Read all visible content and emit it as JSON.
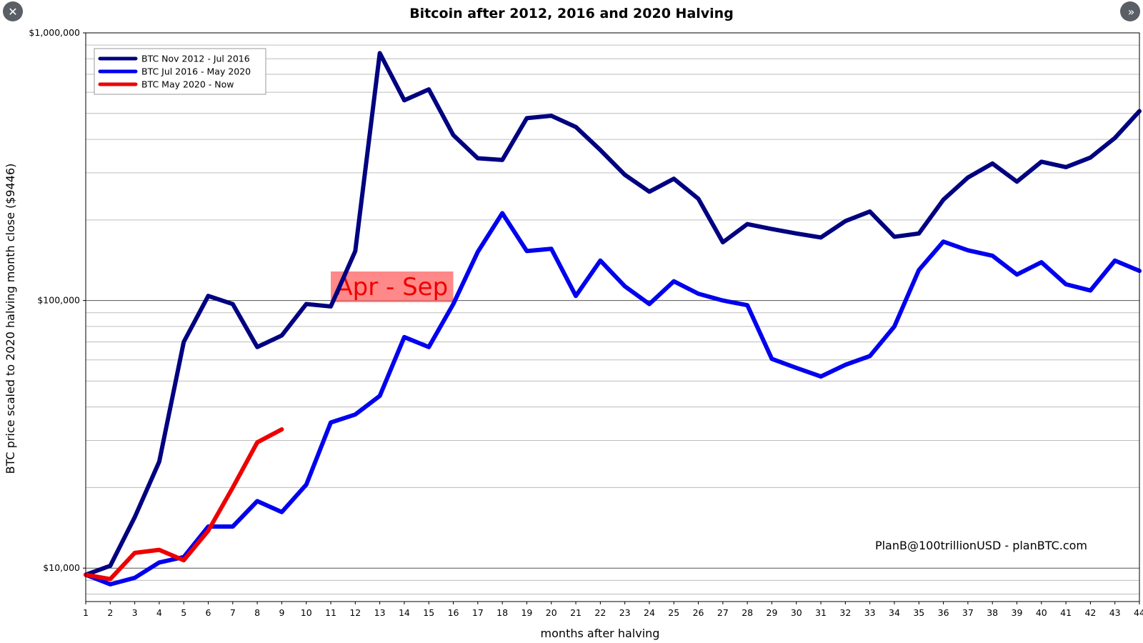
{
  "nav": {
    "close_glyph": "✕",
    "next_glyph": "››",
    "close_icon": "close-icon",
    "next_icon": "double-chevron-right-icon"
  },
  "chart_data": {
    "type": "line",
    "title": "Bitcoin after 2012, 2016 and 2020 Halving",
    "xlabel": "months after halving",
    "ylabel": "BTC price scaled to 2020 halving month close ($9446)",
    "yscale": "log",
    "ylim": [
      7500,
      1000000
    ],
    "xlim": [
      1,
      44
    ],
    "x_ticks": [
      1,
      2,
      3,
      4,
      5,
      6,
      7,
      8,
      9,
      10,
      11,
      12,
      13,
      14,
      15,
      16,
      17,
      18,
      19,
      20,
      21,
      22,
      23,
      24,
      25,
      26,
      27,
      28,
      29,
      30,
      31,
      32,
      33,
      34,
      35,
      36,
      37,
      38,
      39,
      40,
      41,
      42,
      43,
      44
    ],
    "y_ticks": [
      {
        "value": 10000,
        "label": "$10,000"
      },
      {
        "value": 100000,
        "label": "$100,000"
      },
      {
        "value": 1000000,
        "label": "$1,000,000"
      }
    ],
    "grid": true,
    "legend_position": "top-left",
    "series": [
      {
        "name": "BTC Nov 2012 - Jul 2016",
        "color": "#000080",
        "x": [
          1,
          2,
          3,
          4,
          5,
          6,
          7,
          8,
          9,
          10,
          11,
          12,
          13,
          14,
          15,
          16,
          17,
          18,
          19,
          20,
          21,
          22,
          23,
          24,
          25,
          26,
          27,
          28,
          29,
          30,
          31,
          32,
          33,
          34,
          35,
          36,
          37,
          38,
          39,
          40,
          41,
          42,
          43,
          44
        ],
        "y": [
          9446,
          10200,
          15500,
          25000,
          70000,
          104000,
          97000,
          67000,
          74000,
          97000,
          95000,
          153000,
          840000,
          560000,
          615000,
          415000,
          340000,
          335000,
          480000,
          490000,
          445000,
          365000,
          295000,
          255000,
          285000,
          240000,
          165000,
          193000,
          185000,
          178000,
          172000,
          198000,
          215000,
          173000,
          178000,
          238000,
          288000,
          325000,
          278000,
          330000,
          315000,
          342000,
          405000,
          510000
        ]
      },
      {
        "name": "BTC Jul 2016 - May 2020",
        "color": "#0000ee",
        "x": [
          1,
          2,
          3,
          4,
          5,
          6,
          7,
          8,
          9,
          10,
          11,
          12,
          13,
          14,
          15,
          16,
          17,
          18,
          19,
          20,
          21,
          22,
          23,
          24,
          25,
          26,
          27,
          28,
          29,
          30,
          31,
          32,
          33,
          34,
          35,
          36,
          37,
          38,
          39,
          40,
          41,
          42,
          43,
          44
        ],
        "y": [
          9446,
          8700,
          9200,
          10500,
          11000,
          14300,
          14300,
          17800,
          16200,
          20500,
          35000,
          37500,
          44000,
          73000,
          67000,
          97000,
          152000,
          212000,
          153000,
          156000,
          104000,
          141000,
          113000,
          97000,
          118000,
          106000,
          100000,
          96000,
          60500,
          56000,
          52000,
          57500,
          62000,
          80000,
          130000,
          166000,
          154000,
          147000,
          125000,
          139000,
          115000,
          109000,
          141000,
          129000
        ]
      },
      {
        "name": "BTC May 2020 - Now",
        "color": "#ee0000",
        "x": [
          1,
          2,
          3,
          4,
          5,
          6,
          7,
          8,
          9
        ],
        "y": [
          9446,
          9100,
          11400,
          11700,
          10700,
          13800,
          20000,
          29500,
          33000
        ]
      }
    ],
    "annotation": {
      "text": "Apr - Sep",
      "x_range": [
        11,
        16
      ]
    },
    "credit": "PlanB@100trillionUSD  -  planBTC.com"
  }
}
